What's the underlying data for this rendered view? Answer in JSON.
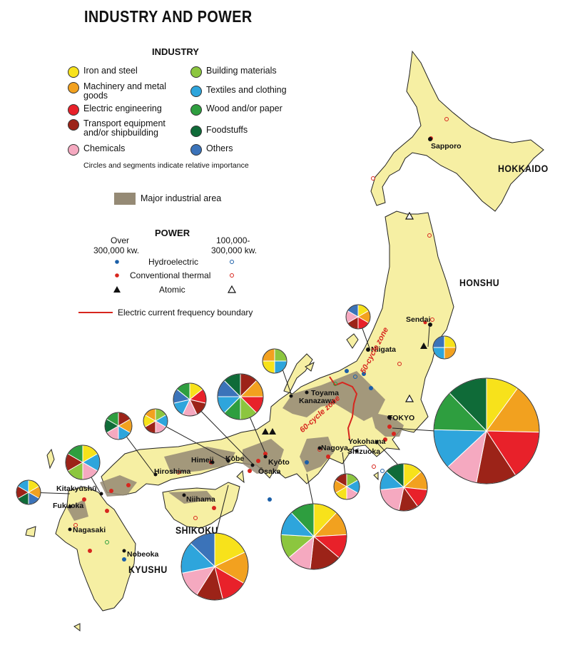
{
  "title": "INDUSTRY AND POWER",
  "industry_legend": {
    "heading": "INDUSTRY",
    "items": [
      {
        "label": "Iron and steel",
        "color": "#f7e21b"
      },
      {
        "label": "Machinery and metal goods",
        "color": "#f2a11f"
      },
      {
        "label": "Electric engineering",
        "color": "#e8212a"
      },
      {
        "label": "Transport equipment and/or shipbuilding",
        "color": "#9c2318"
      },
      {
        "label": "Chemicals",
        "color": "#f5a9c0"
      },
      {
        "label": "Building materials",
        "color": "#8cc63f"
      },
      {
        "label": "Textiles and clothing",
        "color": "#2ea5dc"
      },
      {
        "label": "Wood and/or paper",
        "color": "#2e9e3f"
      },
      {
        "label": "Foodstuffs",
        "color": "#0f6b38"
      },
      {
        "label": "Others",
        "color": "#3b73b9"
      }
    ],
    "note": "Circles and segments indicate relative importance",
    "area_label": "Major industrial area",
    "area_color": "#958a75"
  },
  "power_legend": {
    "heading": "POWER",
    "col_over_l1": "Over",
    "col_over_l2": "300,000 kw.",
    "col_mid_l1": "100,000-",
    "col_mid_l2": "300,000 kw.",
    "hydro": "Hydroelectric",
    "thermal": "Conventional thermal",
    "atomic": "Atomic",
    "freq_label": "Electric current frequency boundary",
    "hydro_color": "#1b5fa8",
    "thermal_color": "#d7261e"
  },
  "regions": {
    "hokkaido": "HOKKAIDO",
    "honshu": "HONSHU",
    "shikoku": "SHIKOKU",
    "kyushu": "KYUSHU"
  },
  "cities": {
    "sapporo": "Sapporo",
    "sendai": "Sendai",
    "niigata": "Niigata",
    "toyama": "Toyama",
    "kanazawa": "Kanazawa",
    "tokyo": "TOKYO",
    "yokohama": "Yokohama",
    "shizuoka": "Shizuoka",
    "nagoya": "Nagoya",
    "kyoto": "Kyōto",
    "osaka": "Ōsaka",
    "kobe": "Kōbe",
    "himeji": "Himeji",
    "hiroshima": "Hiroshima",
    "niihama": "Niihama",
    "kitakyushu": "Kitakyūshū",
    "fukuoka": "Fukuoka",
    "nagasaki": "Nagasaki",
    "nobeoka": "Nobeoka"
  },
  "zones": {
    "fifty": "50-cycle zone",
    "sixty": "60-cycle zone"
  }
}
